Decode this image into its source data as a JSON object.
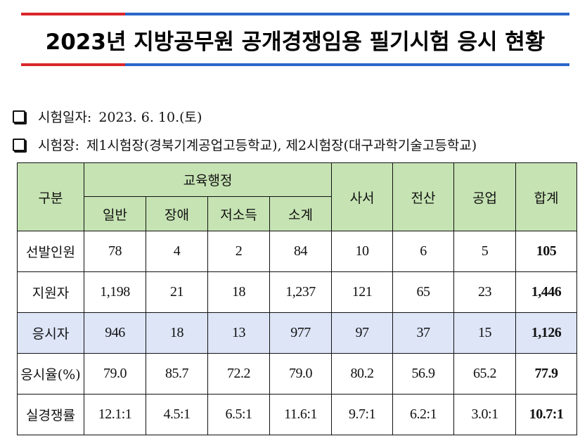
{
  "title": "2023년 지방공무원 공개경쟁임용 필기시험 응시 현황",
  "info": {
    "date_label": "시험일자:",
    "date_value": "2023. 6. 10.(토)",
    "venue_label": "시험장:",
    "venue_value": "제1시험장(경북기계공업고등학교), 제2시험장(대구과학기술고등학교)"
  },
  "table": {
    "header": {
      "category": "구분",
      "group": "교육행정",
      "sub": [
        "일반",
        "장애",
        "저소득",
        "소계"
      ],
      "librarian": "사서",
      "computer": "전산",
      "industrial": "공업",
      "total": "합계"
    },
    "rows": [
      {
        "label": "선발인원",
        "values": [
          "78",
          "4",
          "2",
          "84",
          "10",
          "6",
          "5"
        ],
        "total": "105"
      },
      {
        "label": "지원자",
        "values": [
          "1,198",
          "21",
          "18",
          "1,237",
          "121",
          "65",
          "23"
        ],
        "total": "1,446"
      },
      {
        "label": "응시자",
        "values": [
          "946",
          "18",
          "13",
          "977",
          "97",
          "37",
          "15"
        ],
        "total": "1,126"
      },
      {
        "label": "응시율(%)",
        "values": [
          "79.0",
          "85.7",
          "72.2",
          "79.0",
          "80.2",
          "56.9",
          "65.2"
        ],
        "total": "77.9"
      },
      {
        "label": "실경쟁률",
        "values": [
          "12.1:1",
          "4.5:1",
          "6.5:1",
          "11.6:1",
          "9.7:1",
          "6.2:1",
          "3.0:1"
        ],
        "total": "10.7:1"
      }
    ]
  }
}
